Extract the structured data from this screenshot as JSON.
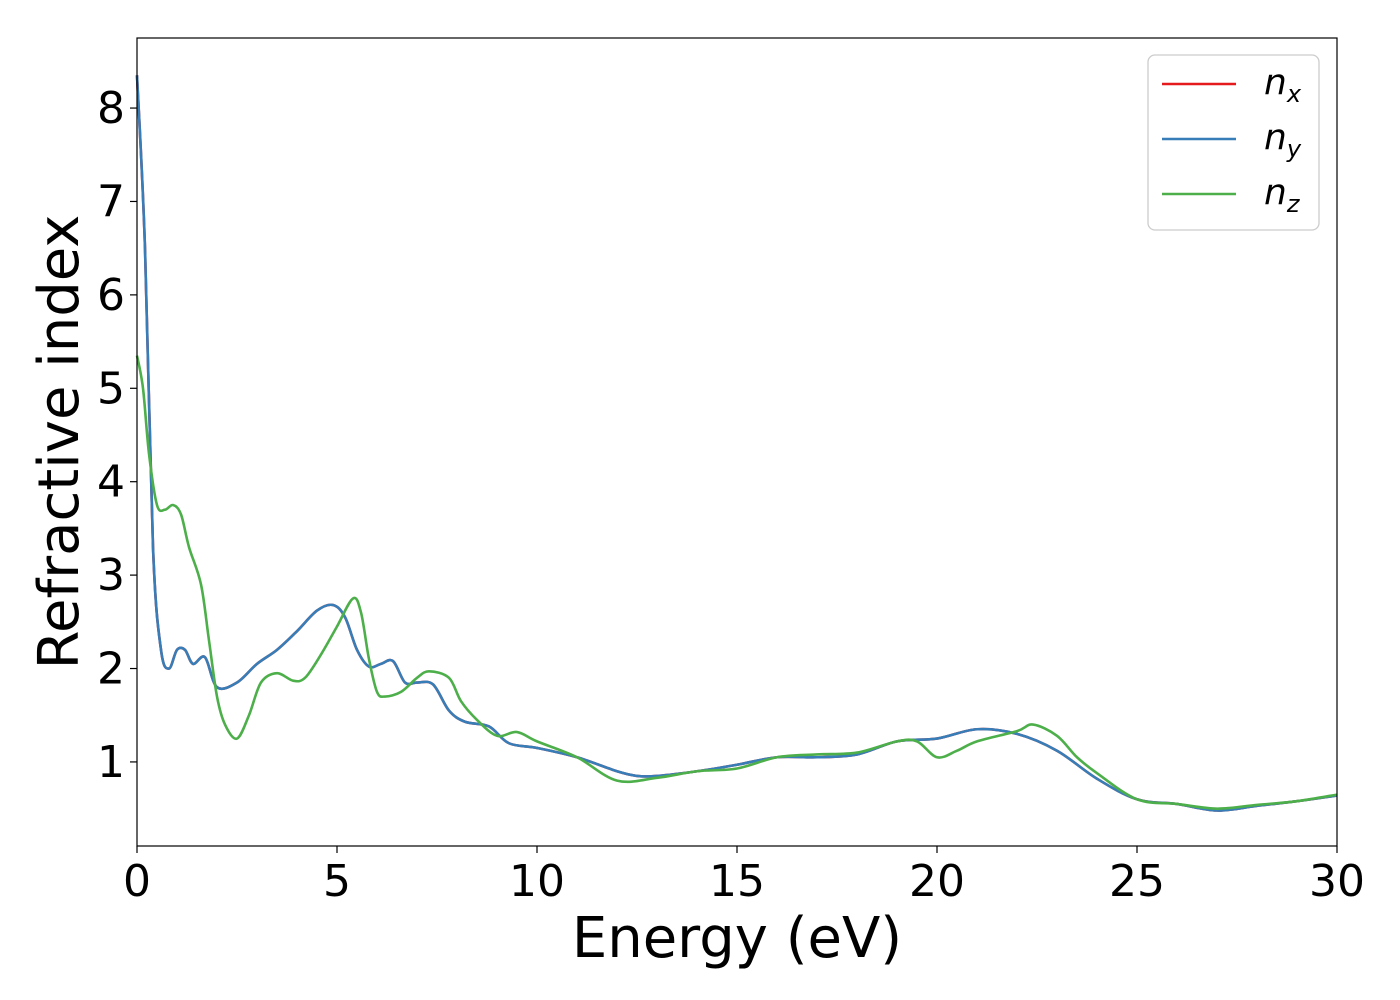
{
  "chart_data": {
    "type": "line",
    "xlabel": "Energy (eV)",
    "ylabel": "Refractive index",
    "xlim": [
      0,
      30
    ],
    "ylim": [
      0.1,
      8.75
    ],
    "xticks": [
      "0",
      "5",
      "10",
      "15",
      "20",
      "25",
      "30"
    ],
    "yticks": [
      "1",
      "2",
      "3",
      "4",
      "5",
      "6",
      "7",
      "8"
    ],
    "grid": false,
    "legend_position": "top-right",
    "series": [
      {
        "name": "n",
        "subscript": "x",
        "color": "#e41a1c",
        "x": [
          0,
          0.2,
          0.4,
          0.6,
          0.8,
          1.0,
          1.2,
          1.4,
          1.7,
          2.0,
          2.5,
          3.0,
          3.5,
          4.0,
          4.5,
          4.9,
          5.2,
          5.5,
          5.8,
          6.1,
          6.4,
          6.7,
          7.0,
          7.4,
          7.8,
          8.2,
          8.8,
          9.3,
          10.0,
          11.0,
          12.0,
          12.5,
          13.0,
          14.0,
          15.0,
          16.0,
          17.0,
          18.0,
          19.0,
          20.0,
          21.0,
          22.0,
          23.0,
          24.0,
          25.0,
          26.0,
          27.0,
          28.0,
          29.0,
          30.0
        ],
        "values": [
          8.35,
          6.5,
          3.3,
          2.2,
          2.0,
          2.2,
          2.2,
          2.05,
          2.12,
          1.8,
          1.85,
          2.05,
          2.2,
          2.4,
          2.62,
          2.68,
          2.55,
          2.2,
          2.02,
          2.05,
          2.08,
          1.85,
          1.85,
          1.83,
          1.55,
          1.43,
          1.38,
          1.2,
          1.15,
          1.05,
          0.9,
          0.85,
          0.85,
          0.9,
          0.97,
          1.05,
          1.05,
          1.08,
          1.22,
          1.25,
          1.35,
          1.3,
          1.12,
          0.82,
          0.6,
          0.55,
          0.48,
          0.53,
          0.58,
          0.64
        ]
      },
      {
        "name": "n",
        "subscript": "y",
        "color": "#377eb8",
        "x": [
          0,
          0.2,
          0.4,
          0.6,
          0.8,
          1.0,
          1.2,
          1.4,
          1.7,
          2.0,
          2.5,
          3.0,
          3.5,
          4.0,
          4.5,
          4.9,
          5.2,
          5.5,
          5.8,
          6.1,
          6.4,
          6.7,
          7.0,
          7.4,
          7.8,
          8.2,
          8.8,
          9.3,
          10.0,
          11.0,
          12.0,
          12.5,
          13.0,
          14.0,
          15.0,
          16.0,
          17.0,
          18.0,
          19.0,
          20.0,
          21.0,
          22.0,
          23.0,
          24.0,
          25.0,
          26.0,
          27.0,
          28.0,
          29.0,
          30.0
        ],
        "values": [
          8.35,
          6.5,
          3.3,
          2.2,
          2.0,
          2.2,
          2.2,
          2.05,
          2.12,
          1.8,
          1.85,
          2.05,
          2.2,
          2.4,
          2.62,
          2.68,
          2.55,
          2.2,
          2.02,
          2.05,
          2.08,
          1.85,
          1.85,
          1.83,
          1.55,
          1.43,
          1.38,
          1.2,
          1.15,
          1.05,
          0.9,
          0.85,
          0.85,
          0.9,
          0.97,
          1.05,
          1.05,
          1.08,
          1.22,
          1.25,
          1.35,
          1.3,
          1.12,
          0.82,
          0.6,
          0.55,
          0.48,
          0.53,
          0.58,
          0.64
        ]
      },
      {
        "name": "n",
        "subscript": "z",
        "color": "#4daf4a",
        "x": [
          0,
          0.15,
          0.3,
          0.5,
          0.7,
          0.9,
          1.1,
          1.3,
          1.6,
          1.8,
          2.0,
          2.2,
          2.5,
          2.8,
          3.1,
          3.5,
          3.9,
          4.2,
          4.6,
          5.0,
          5.4,
          5.6,
          5.8,
          6.0,
          6.2,
          6.6,
          7.0,
          7.3,
          7.8,
          8.1,
          8.5,
          9.0,
          9.5,
          10.0,
          11.0,
          12.0,
          13.0,
          14.0,
          15.0,
          16.0,
          17.0,
          18.0,
          19.0,
          19.5,
          20.0,
          20.5,
          21.0,
          22.0,
          22.4,
          23.0,
          23.5,
          24.0,
          25.0,
          26.0,
          27.0,
          28.0,
          29.0,
          30.0
        ],
        "values": [
          5.35,
          5.0,
          4.3,
          3.75,
          3.7,
          3.75,
          3.65,
          3.3,
          2.9,
          2.3,
          1.7,
          1.4,
          1.25,
          1.5,
          1.85,
          1.95,
          1.87,
          1.9,
          2.15,
          2.45,
          2.75,
          2.6,
          2.1,
          1.75,
          1.7,
          1.75,
          1.9,
          1.97,
          1.9,
          1.65,
          1.45,
          1.28,
          1.32,
          1.22,
          1.05,
          0.8,
          0.83,
          0.9,
          0.93,
          1.05,
          1.08,
          1.1,
          1.22,
          1.22,
          1.05,
          1.12,
          1.22,
          1.33,
          1.4,
          1.28,
          1.05,
          0.88,
          0.6,
          0.55,
          0.5,
          0.54,
          0.58,
          0.65
        ]
      }
    ]
  }
}
